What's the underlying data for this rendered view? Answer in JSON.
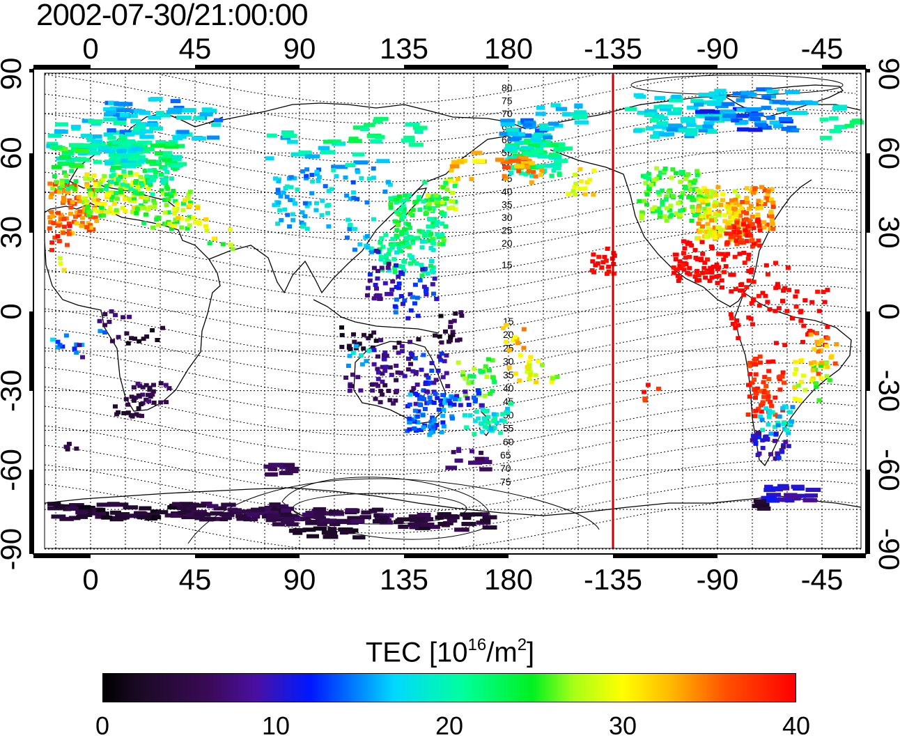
{
  "title": "2002-07-30/21:00:00",
  "map": {
    "top_lon_labels": [
      "0",
      "45",
      "90",
      "135",
      "180",
      "-135",
      "-90",
      "-45"
    ],
    "bottom_lon_labels": [
      "0",
      "45",
      "90",
      "135",
      "180",
      "-135",
      "-90",
      "-45"
    ],
    "left_lat_labels": [
      "90",
      "60",
      "30",
      "0",
      "-30",
      "-60",
      "-90"
    ],
    "right_lat_labels": [
      "90",
      "60",
      "30",
      "0",
      "-30",
      "-60",
      "-90"
    ],
    "contour_labels_north": [
      "80",
      "75",
      "70",
      "65",
      "60",
      "55",
      "50",
      "45",
      "40",
      "35",
      "30",
      "25",
      "20",
      "15"
    ],
    "contour_labels_south": [
      "15",
      "20",
      "25",
      "30",
      "35",
      "40",
      "45",
      "50",
      "55",
      "60",
      "65",
      "70",
      "75"
    ],
    "terminator_longitude": -135,
    "terminator_color": "#cc0000"
  },
  "colorbar": {
    "title_prefix": "TEC  [10",
    "title_exp1": "16",
    "title_mid": "/m",
    "title_exp2": "2",
    "title_suffix": "]",
    "ticks": [
      "0",
      "10",
      "20",
      "30",
      "40"
    ],
    "range": [
      0,
      40
    ]
  }
}
